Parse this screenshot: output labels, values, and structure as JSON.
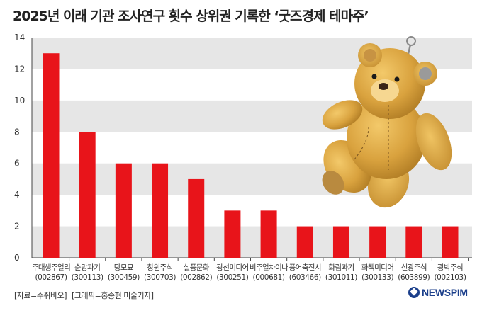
{
  "header": {
    "title": "2025년 이래 기관 조사연구 횟수 상위권 기록한 ‘굿즈경제 테마주’"
  },
  "chart_data": {
    "type": "bar",
    "title": "2025년 이래 기관 조사연구 횟수 상위권 기록한 ‘굿즈경제 테마주’",
    "xlabel": "",
    "ylabel": "",
    "ylim": [
      0,
      14
    ],
    "yticks": [
      "0",
      "2",
      "4",
      "6",
      "8",
      "10",
      "12",
      "14"
    ],
    "categories": [
      {
        "name": "주대생주얼리",
        "code": "(002867)"
      },
      {
        "name": "순망과기",
        "code": "(300113)"
      },
      {
        "name": "탕모묘",
        "code": "(300459)"
      },
      {
        "name": "창원주식",
        "code": "(300703)"
      },
      {
        "name": "실풍문화",
        "code": "(002862)"
      },
      {
        "name": "광선미디어",
        "code": "(300251)"
      },
      {
        "name": "비주얼차이나",
        "code": "(000681)"
      },
      {
        "name": "풍어축전시",
        "code": "(603466)"
      },
      {
        "name": "화림과기",
        "code": "(301011)"
      },
      {
        "name": "화책미디어",
        "code": "(300133)"
      },
      {
        "name": "신광주식",
        "code": "(603899)"
      },
      {
        "name": "광박주식",
        "code": "(002103)"
      }
    ],
    "values": [
      13,
      8,
      6,
      6,
      5,
      3,
      3,
      2,
      2,
      2,
      2,
      2
    ],
    "bar_color": "#e8141a",
    "band_color": "#e6e6e6",
    "grid": true
  },
  "illustration": {
    "name": "teddy-bear-keychain"
  },
  "footer": {
    "source": "[자료=수쥐바오]",
    "credit": "[그래픽=홍종현 미술기자]",
    "brand": "NEWSPIM"
  }
}
